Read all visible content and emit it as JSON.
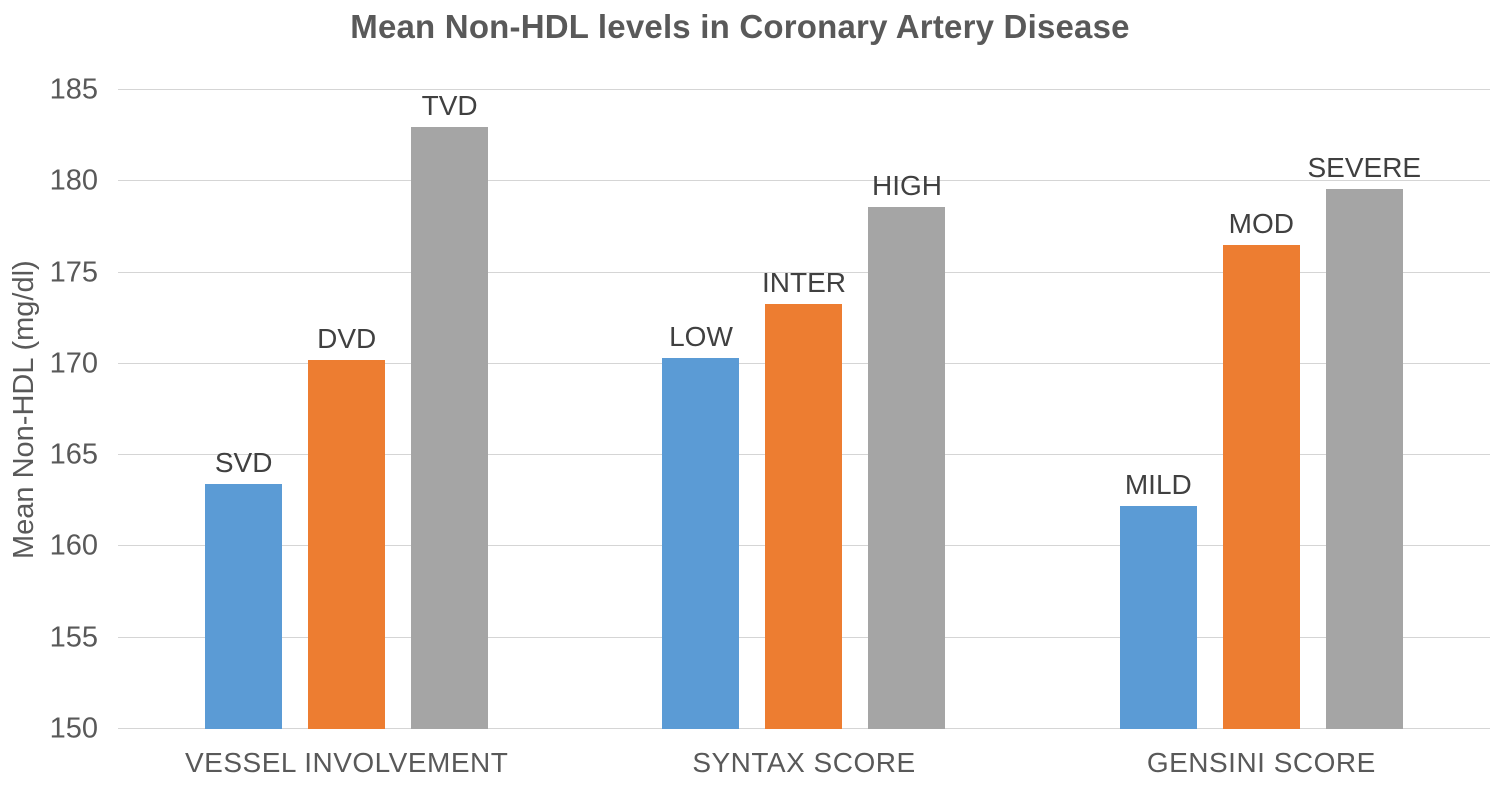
{
  "chart_data": {
    "type": "bar",
    "title": "Mean Non-HDL levels in Coronary Artery Disease",
    "xlabel": "",
    "ylabel": "Mean Non-HDL (mg/dl)",
    "ylim": [
      150,
      185
    ],
    "yticks": [
      150,
      155,
      160,
      165,
      170,
      175,
      180,
      185
    ],
    "grid": true,
    "legend": false,
    "background_color": "#ffffff",
    "gridline_color": "#d5d5d5",
    "title_color": "#595959",
    "axis_text_color": "#595959",
    "bar_label_color": "#404040",
    "series_colors": {
      "series1_blue": "#5B9BD5",
      "series2_orange": "#ED7D31",
      "series3_gray": "#A5A5A5"
    },
    "categories": [
      "VESSEL INVOLVEMENT",
      "SYNTAX SCORE",
      "GENSINI SCORE"
    ],
    "groups": [
      {
        "category": "VESSEL INVOLVEMENT",
        "bars": [
          {
            "label": "SVD",
            "value": 163.4,
            "color": "#5B9BD5"
          },
          {
            "label": "DVD",
            "value": 170.2,
            "color": "#ED7D31"
          },
          {
            "label": "TVD",
            "value": 183.0,
            "color": "#A5A5A5"
          }
        ]
      },
      {
        "category": "SYNTAX SCORE",
        "bars": [
          {
            "label": "LOW",
            "value": 170.3,
            "color": "#5B9BD5"
          },
          {
            "label": "INTER",
            "value": 173.3,
            "color": "#ED7D31"
          },
          {
            "label": "HIGH",
            "value": 178.6,
            "color": "#A5A5A5"
          }
        ]
      },
      {
        "category": "GENSINI SCORE",
        "bars": [
          {
            "label": "MILD",
            "value": 162.2,
            "color": "#5B9BD5"
          },
          {
            "label": "MOD",
            "value": 176.5,
            "color": "#ED7D31"
          },
          {
            "label": "SEVERE",
            "value": 179.6,
            "color": "#A5A5A5"
          }
        ]
      }
    ]
  }
}
